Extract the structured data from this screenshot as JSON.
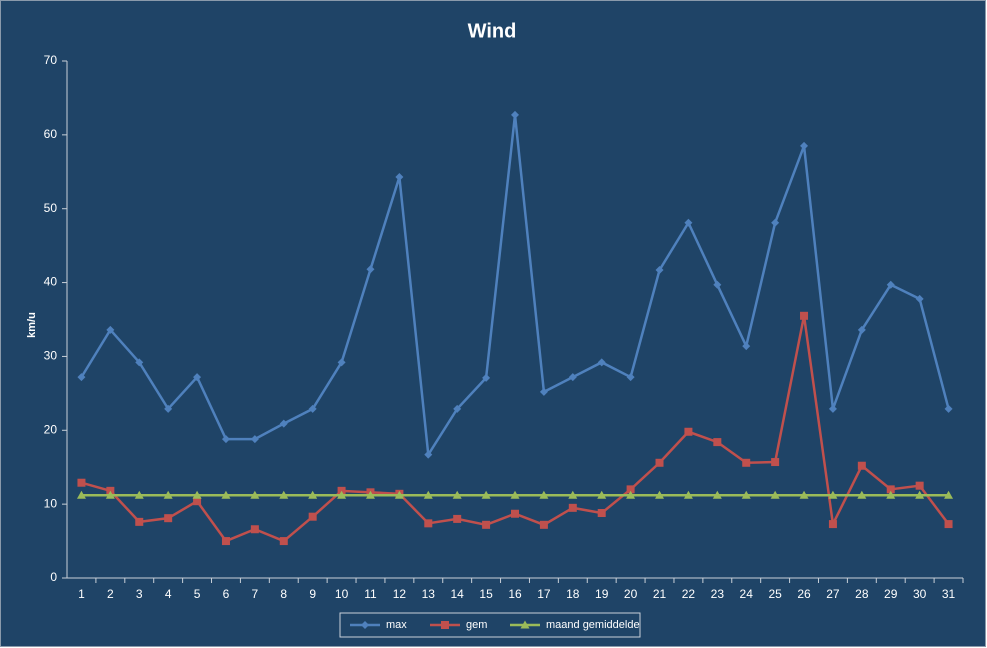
{
  "chart_data": {
    "type": "line",
    "title": "Wind",
    "y_label": "km/u",
    "categories": [
      "1",
      "2",
      "3",
      "4",
      "5",
      "6",
      "7",
      "8",
      "9",
      "10",
      "11",
      "12",
      "13",
      "14",
      "15",
      "16",
      "17",
      "18",
      "19",
      "20",
      "21",
      "22",
      "23",
      "24",
      "25",
      "26",
      "27",
      "28",
      "29",
      "30",
      "31"
    ],
    "series": [
      {
        "name": "max",
        "color": "#4f81bd",
        "marker": "diamond",
        "values": [
          27.2,
          33.6,
          29.2,
          22.9,
          27.2,
          18.8,
          18.8,
          20.9,
          22.9,
          29.2,
          41.8,
          54.3,
          16.7,
          22.9,
          27.1,
          62.7,
          25.2,
          27.2,
          29.2,
          27.2,
          41.7,
          48.1,
          39.7,
          31.4,
          48.1,
          58.5,
          22.9,
          33.6,
          39.7,
          37.8,
          22.9
        ]
      },
      {
        "name": "gem",
        "color": "#c0504d",
        "marker": "square",
        "values": [
          12.9,
          11.8,
          7.6,
          8.1,
          10.4,
          5.0,
          6.6,
          5.0,
          8.3,
          11.8,
          11.6,
          11.4,
          7.4,
          8.0,
          7.2,
          8.7,
          7.2,
          9.5,
          8.8,
          12.0,
          15.6,
          19.8,
          18.4,
          15.6,
          15.7,
          35.5,
          7.3,
          15.2,
          12.0,
          12.5,
          7.3
        ]
      },
      {
        "name": "maand gemiddelde",
        "color": "#9bbb59",
        "marker": "triangle",
        "values": [
          11.2,
          11.2,
          11.2,
          11.2,
          11.2,
          11.2,
          11.2,
          11.2,
          11.2,
          11.2,
          11.2,
          11.2,
          11.2,
          11.2,
          11.2,
          11.2,
          11.2,
          11.2,
          11.2,
          11.2,
          11.2,
          11.2,
          11.2,
          11.2,
          11.2,
          11.2,
          11.2,
          11.2,
          11.2,
          11.2,
          11.2
        ]
      }
    ],
    "ylim": [
      0,
      70
    ],
    "yticks": [
      0,
      10,
      20,
      30,
      40,
      50,
      60,
      70
    ],
    "grid": false,
    "legend": "bottom"
  }
}
